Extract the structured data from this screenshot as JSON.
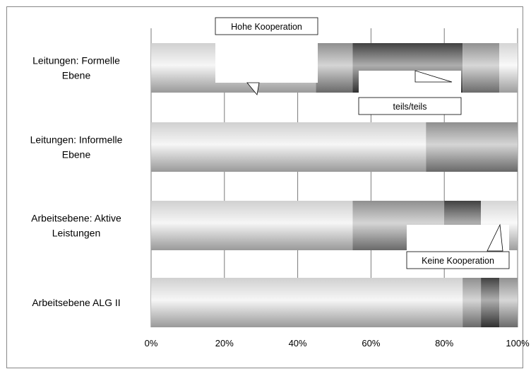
{
  "chart_data": {
    "type": "bar",
    "orientation": "horizontal",
    "stacked": "percent",
    "title": "",
    "xlabel": "",
    "ylabel": "",
    "xlim": [
      0,
      100
    ],
    "x_ticks": [
      "0%",
      "20%",
      "40%",
      "60%",
      "80%",
      "100%"
    ],
    "grid": "vertical",
    "legend": "none",
    "categories": [
      [
        "Leitungen: Formelle",
        "Ebene"
      ],
      [
        "Leitungen: Informelle",
        "Ebene"
      ],
      [
        "Arbeitsebene: Aktive",
        "Leistungen"
      ],
      [
        "Arbeitsebene ALG II"
      ]
    ],
    "series": [
      {
        "values": [
          45,
          75,
          55,
          85
        ]
      },
      {
        "values": [
          10,
          25,
          25,
          5
        ]
      },
      {
        "values": [
          30,
          0,
          10,
          5
        ]
      },
      {
        "values": [
          10,
          0,
          0,
          5
        ]
      },
      {
        "values": [
          5,
          0,
          10,
          0
        ]
      }
    ],
    "series_colors": [
      "#ececec",
      "#a2a2a2",
      "#4a4a4a",
      "#a5a5a5",
      "#f2f2f2"
    ],
    "callouts": [
      {
        "text": "Hohe Kooperation"
      },
      {
        "text": "teils/teils"
      },
      {
        "text": "Keine Kooperation"
      }
    ]
  }
}
